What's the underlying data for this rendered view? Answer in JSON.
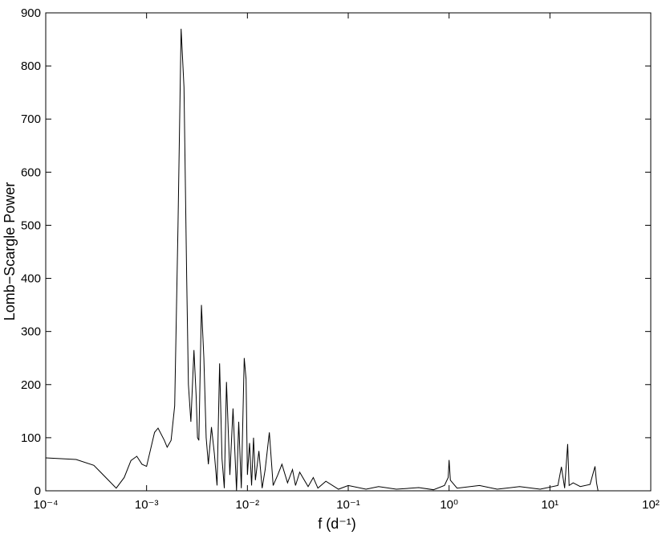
{
  "chart_data": {
    "type": "line",
    "xlabel": "f (d⁻¹)",
    "ylabel": "Lomb−Scargle Power",
    "xscale": "log",
    "color": "#000000",
    "xlim": [
      0.0001,
      100
    ],
    "ylim": [
      0,
      900
    ],
    "xticks": [
      {
        "value": 0.0001,
        "label": "10⁻⁴"
      },
      {
        "value": 0.001,
        "label": "10⁻³"
      },
      {
        "value": 0.01,
        "label": "10⁻²"
      },
      {
        "value": 0.1,
        "label": "10⁻¹"
      },
      {
        "value": 1,
        "label": "10⁰"
      },
      {
        "value": 10,
        "label": "10¹"
      },
      {
        "value": 100,
        "label": "10²"
      }
    ],
    "yticks": [
      0,
      100,
      200,
      300,
      400,
      500,
      600,
      700,
      800,
      900
    ],
    "x": [
      0.0001,
      0.0002,
      0.0003,
      0.0005,
      0.0006,
      0.0007,
      0.0008,
      0.0009,
      0.001,
      0.0012,
      0.0013,
      0.0015,
      0.0016,
      0.00175,
      0.0019,
      0.00205,
      0.0022,
      0.00235,
      0.0025,
      0.0026,
      0.00275,
      0.00295,
      0.0031,
      0.0032,
      0.0033,
      0.0035,
      0.0037,
      0.0039,
      0.0041,
      0.0044,
      0.0047,
      0.005,
      0.0053,
      0.0056,
      0.0059,
      0.0062,
      0.0067,
      0.0072,
      0.0078,
      0.0082,
      0.0087,
      0.0093,
      0.0097,
      0.01,
      0.0105,
      0.011,
      0.0115,
      0.012,
      0.013,
      0.014,
      0.015,
      0.0165,
      0.018,
      0.02,
      0.022,
      0.025,
      0.028,
      0.03,
      0.033,
      0.04,
      0.045,
      0.05,
      0.06,
      0.08,
      0.1,
      0.15,
      0.2,
      0.3,
      0.5,
      0.7,
      0.9,
      0.98,
      1.0,
      1.03,
      1.2,
      2,
      3,
      5,
      8,
      12,
      13,
      14,
      15,
      15.5,
      17,
      20,
      25,
      28,
      29,
      30
    ],
    "values": [
      62,
      59,
      48,
      5,
      25,
      57,
      65,
      50,
      46,
      110,
      118,
      95,
      82,
      95,
      160,
      500,
      870,
      760,
      400,
      200,
      130,
      265,
      180,
      100,
      95,
      350,
      250,
      100,
      50,
      120,
      70,
      10,
      240,
      60,
      5,
      205,
      30,
      155,
      0,
      130,
      5,
      250,
      210,
      30,
      90,
      10,
      100,
      20,
      75,
      5,
      40,
      110,
      10,
      30,
      50,
      15,
      40,
      10,
      35,
      8,
      25,
      5,
      18,
      3,
      10,
      3,
      8,
      3,
      6,
      2,
      10,
      25,
      58,
      20,
      5,
      10,
      3,
      8,
      3,
      10,
      45,
      5,
      88,
      10,
      15,
      8,
      12,
      46,
      15,
      0
    ]
  }
}
